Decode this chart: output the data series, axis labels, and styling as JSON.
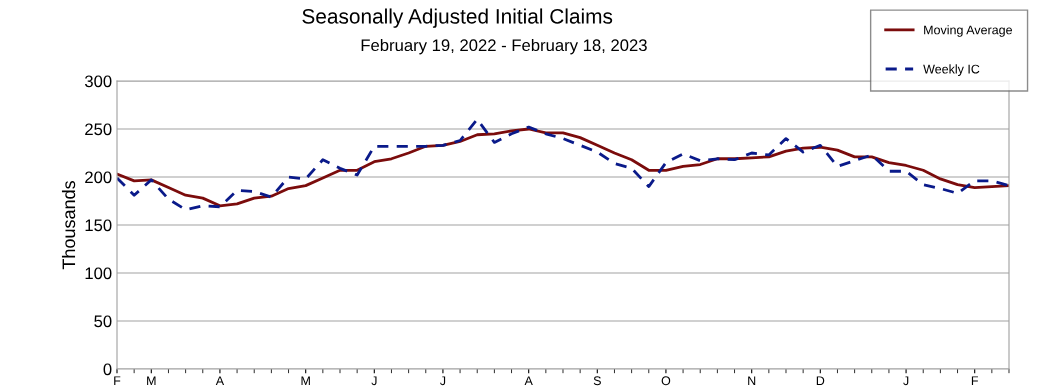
{
  "chart_data": {
    "type": "line",
    "title": "Seasonally Adjusted Initial Claims",
    "subtitle": "February 19, 2022 - February 18, 2023",
    "ylabel": "Thousands",
    "categories": [
      "F",
      null,
      "M",
      null,
      null,
      null,
      "A",
      null,
      null,
      null,
      null,
      "M",
      null,
      null,
      null,
      "J",
      null,
      null,
      null,
      "J",
      null,
      null,
      null,
      null,
      "A",
      null,
      null,
      null,
      "S",
      null,
      null,
      null,
      "O",
      null,
      null,
      null,
      null,
      "N",
      null,
      null,
      null,
      "D",
      null,
      null,
      null,
      null,
      "J",
      null,
      null,
      null,
      "F",
      null,
      null
    ],
    "series": [
      {
        "name": "Moving Average",
        "color": "#7b0c0c",
        "line_style": "solid",
        "values": [
          203,
          196,
          197,
          189,
          181,
          178,
          170,
          172,
          178,
          180,
          188,
          191,
          199,
          207,
          207,
          216,
          219,
          225,
          232,
          233,
          237,
          244,
          245,
          248,
          250,
          246,
          246,
          241,
          233,
          225,
          218,
          207,
          207,
          211,
          213,
          219,
          219,
          220,
          221,
          227,
          230,
          231,
          228,
          221,
          221,
          215,
          212,
          207,
          198,
          192,
          189,
          190,
          191
        ]
      },
      {
        "name": "Weekly IC",
        "color": "#0a1a8a",
        "line_style": "dashed",
        "values": [
          199,
          181,
          197,
          177,
          166,
          170,
          169,
          186,
          185,
          179,
          200,
          198,
          218,
          209,
          202,
          232,
          232,
          232,
          232,
          233,
          238,
          260,
          236,
          245,
          252,
          245,
          240,
          233,
          226,
          214,
          209,
          190,
          215,
          224,
          217,
          219,
          218,
          225,
          223,
          240,
          226,
          233,
          211,
          217,
          223,
          206,
          206,
          192,
          188,
          183,
          196,
          196,
          191
        ]
      }
    ],
    "ylim": [
      0,
      300
    ],
    "yticks": [
      0,
      50,
      100,
      150,
      200,
      250,
      300
    ],
    "grid": "y",
    "legend": "top right"
  }
}
